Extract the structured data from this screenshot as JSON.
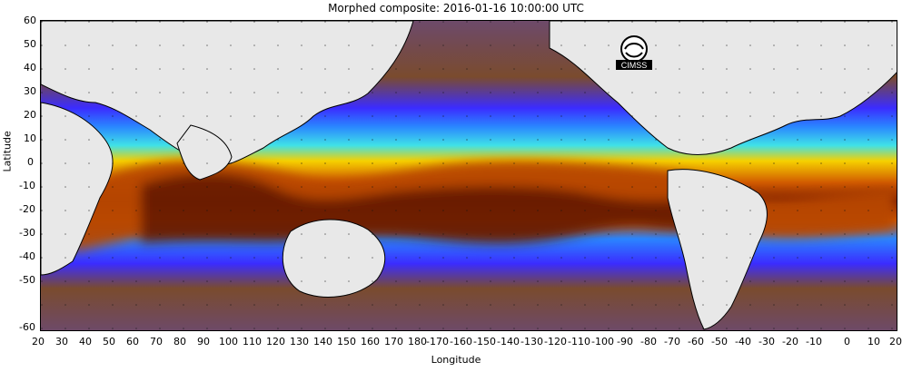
{
  "title": "Morphed composite: 2016-01-16 10:00:00 UTC",
  "axes": {
    "ylabel": "Latitude",
    "xlabel": "Longitude",
    "y_ticks": [
      "60",
      "50",
      "40",
      "30",
      "20",
      "10",
      "0",
      "-10",
      "-20",
      "-30",
      "-40",
      "-50",
      "-60"
    ],
    "x_ticks": [
      "20",
      "30",
      "40",
      "50",
      "60",
      "70",
      "80",
      "90",
      "100",
      "110",
      "120",
      "130",
      "140",
      "150",
      "160",
      "170",
      "180",
      "-170",
      "-160",
      "-150",
      "-140",
      "-130",
      "-120",
      "-110",
      "-100",
      "-90",
      "-80",
      "-70",
      "-60",
      "-50",
      "-40",
      "-30",
      "-20",
      "-10",
      "0",
      "10",
      "20"
    ]
  },
  "logo_text": "CIMSS",
  "colors": {
    "background_field": "#6d4a6a",
    "land": "#e8e8e8",
    "low_moisture": "#7a4b2e",
    "mid_moisture": "#2d7cff",
    "high_moisture": "#d15a00",
    "very_high": "#7a1d00",
    "grid": "#111111"
  }
}
